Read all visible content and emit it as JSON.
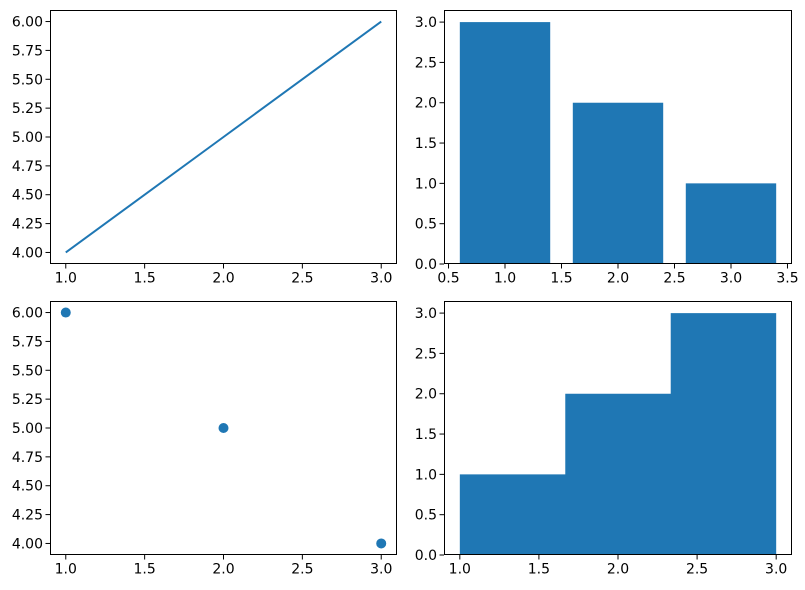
{
  "figure": {
    "background": "#ffffff",
    "accent_color": "#1f77b4",
    "spine_color": "#000000",
    "tick_color": "#000000"
  },
  "chart_data": [
    {
      "id": "line-plot",
      "type": "line",
      "position": "top-left",
      "x": [
        1,
        2,
        3
      ],
      "y": [
        4,
        5,
        6
      ],
      "xlim": [
        0.9,
        3.1
      ],
      "ylim": [
        3.9,
        6.1
      ],
      "xtick_labels": [
        "1.0",
        "1.5",
        "2.0",
        "2.5",
        "3.0"
      ],
      "ytick_labels": [
        "4.00",
        "4.25",
        "4.50",
        "4.75",
        "5.00",
        "5.25",
        "5.50",
        "5.75",
        "6.00"
      ],
      "title": "",
      "xlabel": "",
      "ylabel": "",
      "grid": false,
      "legend": null,
      "color": "#1f77b4"
    },
    {
      "id": "bar-chart",
      "type": "bar",
      "position": "top-right",
      "categories": [
        1,
        2,
        3
      ],
      "values": [
        3,
        2,
        1
      ],
      "bar_width": 0.8,
      "xlim": [
        0.46,
        3.54
      ],
      "ylim": [
        0,
        3.15
      ],
      "xtick_labels": [
        "0.5",
        "1.0",
        "1.5",
        "2.0",
        "2.5",
        "3.0",
        "3.5"
      ],
      "ytick_labels": [
        "0.0",
        "0.5",
        "1.0",
        "1.5",
        "2.0",
        "2.5",
        "3.0"
      ],
      "title": "",
      "xlabel": "",
      "ylabel": "",
      "grid": false,
      "legend": null,
      "color": "#1f77b4"
    },
    {
      "id": "scatter-plot",
      "type": "scatter",
      "position": "bottom-left",
      "x": [
        1,
        2,
        3
      ],
      "y": [
        6,
        5,
        4
      ],
      "xlim": [
        0.9,
        3.1
      ],
      "ylim": [
        3.9,
        6.1
      ],
      "xtick_labels": [
        "1.0",
        "1.5",
        "2.0",
        "2.5",
        "3.0"
      ],
      "ytick_labels": [
        "4.00",
        "4.25",
        "4.50",
        "4.75",
        "5.00",
        "5.25",
        "5.50",
        "5.75",
        "6.00"
      ],
      "title": "",
      "xlabel": "",
      "ylabel": "",
      "grid": false,
      "legend": null,
      "color": "#1f77b4"
    },
    {
      "id": "histogram",
      "type": "bar",
      "subtype": "histogram",
      "position": "bottom-right",
      "bin_edges": [
        1,
        1.6667,
        2.3333,
        3
      ],
      "values": [
        1,
        2,
        3
      ],
      "xlim": [
        0.9,
        3.1
      ],
      "ylim": [
        0,
        3.15
      ],
      "xtick_labels": [
        "1.0",
        "1.5",
        "2.0",
        "2.5",
        "3.0"
      ],
      "ytick_labels": [
        "0.0",
        "0.5",
        "1.0",
        "1.5",
        "2.0",
        "2.5",
        "3.0"
      ],
      "title": "",
      "xlabel": "",
      "ylabel": "",
      "grid": false,
      "legend": null,
      "color": "#1f77b4"
    }
  ]
}
